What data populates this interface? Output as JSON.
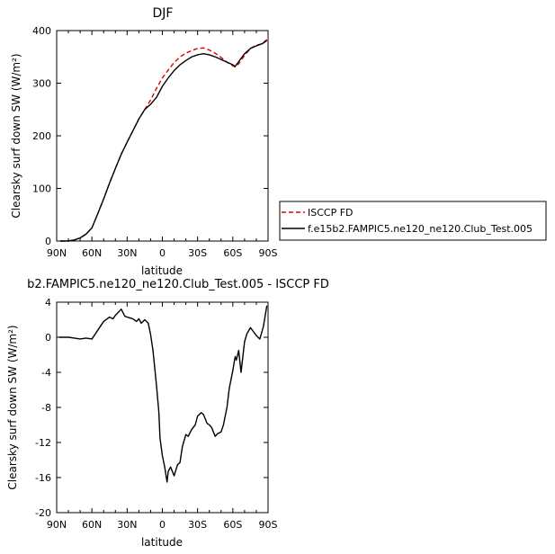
{
  "chart_data": [
    {
      "type": "line",
      "title": "DJF",
      "xlabel": "latitude",
      "ylabel": "Clearsky surf down SW (W/m²)",
      "xlim": [
        90,
        -90
      ],
      "ylim": [
        0,
        400
      ],
      "x_ticks": [
        90,
        60,
        30,
        0,
        -30,
        -60,
        -90
      ],
      "x_tick_labels": [
        "90N",
        "60N",
        "30N",
        "0",
        "30S",
        "60S",
        "90S"
      ],
      "y_ticks": [
        0,
        100,
        200,
        300,
        400
      ],
      "y_tick_labels": [
        "0",
        "100",
        "200",
        "300",
        "400"
      ],
      "legend_position": "right",
      "series": [
        {
          "name": "ISCCP FD",
          "color": "#e00000",
          "dash": "dashed",
          "x": [
            87,
            80,
            75,
            70,
            65,
            60,
            55,
            50,
            45,
            40,
            35,
            30,
            25,
            20,
            15,
            10,
            5,
            0,
            -5,
            -10,
            -15,
            -20,
            -25,
            -30,
            -35,
            -40,
            -45,
            -50,
            -55,
            -60,
            -62,
            -65,
            -70,
            -75,
            -80,
            -85,
            -89
          ],
          "y": [
            0,
            0,
            2,
            6,
            13,
            25,
            52,
            80,
            110,
            138,
            165,
            188,
            210,
            232,
            250,
            268,
            290,
            310,
            325,
            339,
            350,
            357,
            362,
            366,
            367,
            363,
            357,
            349,
            340,
            333,
            331,
            337,
            353,
            366,
            372,
            375,
            383
          ]
        },
        {
          "name": "f.e15b2.FAMPIC5.ne120_ne120.Club_Test.005",
          "color": "#000000",
          "dash": "solid",
          "x": [
            87,
            80,
            75,
            70,
            65,
            60,
            55,
            50,
            45,
            40,
            35,
            30,
            25,
            20,
            15,
            10,
            5,
            0,
            -5,
            -10,
            -15,
            -20,
            -25,
            -30,
            -35,
            -40,
            -45,
            -50,
            -55,
            -60,
            -62,
            -65,
            -70,
            -75,
            -80,
            -85,
            -89
          ],
          "y": [
            0,
            0,
            2,
            6,
            13,
            25,
            52,
            80,
            110,
            138,
            165,
            188,
            210,
            232,
            250,
            260,
            273,
            294,
            310,
            324,
            335,
            343,
            350,
            354,
            356,
            354,
            350,
            345,
            340,
            335,
            332,
            341,
            356,
            366,
            371,
            375,
            381
          ]
        }
      ]
    },
    {
      "type": "line",
      "title": "b2.FAMPIC5.ne120_ne120.Club_Test.005 - ISCCP FD",
      "xlabel": "latitude",
      "ylabel": "Clearsky surf down SW (W/m²)",
      "xlim": [
        90,
        -90
      ],
      "ylim": [
        -20,
        4
      ],
      "x_ticks": [
        90,
        60,
        30,
        0,
        -30,
        -60,
        -90
      ],
      "x_tick_labels": [
        "90N",
        "60N",
        "30N",
        "0",
        "30S",
        "60S",
        "90S"
      ],
      "y_ticks": [
        -20,
        -16,
        -12,
        -8,
        -4,
        0,
        4
      ],
      "y_tick_labels": [
        "-20",
        "-16",
        "-12",
        "-8",
        "-4",
        "0",
        "4"
      ],
      "series": [
        {
          "color": "#000000",
          "x": [
            88,
            80,
            75,
            70,
            65,
            60,
            55,
            50,
            45,
            42,
            40,
            35,
            32,
            30,
            25,
            22,
            20,
            18,
            15,
            12,
            10,
            8,
            5,
            3,
            2,
            0,
            -2,
            -4,
            -5,
            -7,
            -10,
            -13,
            -15,
            -17,
            -20,
            -22,
            -25,
            -28,
            -30,
            -33,
            -35,
            -38,
            -40,
            -42,
            -45,
            -47,
            -50,
            -52,
            -55,
            -57,
            -60,
            -62,
            -63,
            -65,
            -67,
            -70,
            -72,
            -75,
            -80,
            -83,
            -86,
            -89
          ],
          "y": [
            0,
            0,
            -0.1,
            -0.2,
            -0.1,
            -0.2,
            0.8,
            1.8,
            2.3,
            2.1,
            2.5,
            3.2,
            2.4,
            2.3,
            2.1,
            1.8,
            2.1,
            1.6,
            2.0,
            1.6,
            0.3,
            -1.5,
            -5.5,
            -8.5,
            -11.5,
            -13.5,
            -14.8,
            -16.5,
            -15.3,
            -14.8,
            -15.8,
            -14.5,
            -14.3,
            -12.5,
            -11.1,
            -11.3,
            -10.5,
            -10,
            -9,
            -8.6,
            -8.8,
            -9.8,
            -10.0,
            -10.3,
            -11.3,
            -11.0,
            -10.8,
            -10.0,
            -8.0,
            -5.8,
            -3.8,
            -2.2,
            -2.6,
            -1.5,
            -4.0,
            -0.5,
            0.4,
            1.1,
            0.2,
            -0.2,
            1.2,
            3.6
          ]
        }
      ]
    }
  ]
}
